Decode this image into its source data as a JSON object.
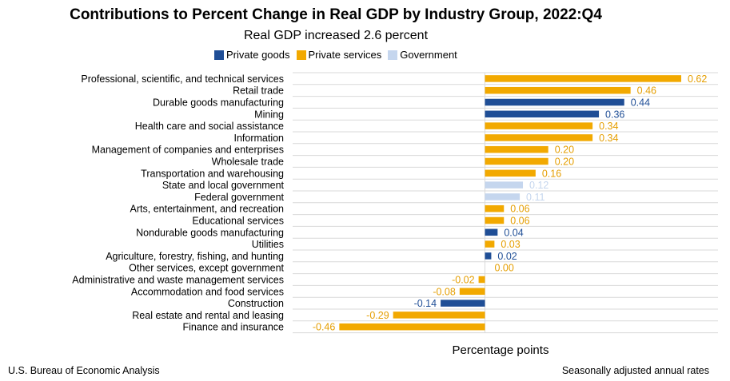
{
  "chart_data": {
    "type": "bar",
    "orientation": "horizontal",
    "title": "Contributions to Percent Change in Real GDP by Industry Group, 2022:Q4",
    "subtitle": "Real GDP increased 2.6 percent",
    "xlabel": "Percentage points",
    "xlim": [
      -0.46,
      0.62
    ],
    "grid": true,
    "legend_placement": "top",
    "groups": [
      {
        "key": "private_goods",
        "label": "Private goods",
        "color": "#1f4e96",
        "label_color": "#1f4e96"
      },
      {
        "key": "private_services",
        "label": "Private services",
        "color": "#f2a900",
        "label_color": "#e59e00"
      },
      {
        "key": "government",
        "label": "Government",
        "color": "#c5d6ee",
        "label_color": "#c5d6ee"
      }
    ],
    "categories": [
      {
        "name": "Professional, scientific, and technical services",
        "value": 0.62,
        "label": "0.62",
        "group": "private_services"
      },
      {
        "name": "Retail trade",
        "value": 0.46,
        "label": "0.46",
        "group": "private_services"
      },
      {
        "name": "Durable goods manufacturing",
        "value": 0.44,
        "label": "0.44",
        "group": "private_goods"
      },
      {
        "name": "Mining",
        "value": 0.36,
        "label": "0.36",
        "group": "private_goods"
      },
      {
        "name": "Health care and social assistance",
        "value": 0.34,
        "label": "0.34",
        "group": "private_services"
      },
      {
        "name": "Information",
        "value": 0.34,
        "label": "0.34",
        "group": "private_services"
      },
      {
        "name": "Management of companies and enterprises",
        "value": 0.2,
        "label": "0.20",
        "group": "private_services"
      },
      {
        "name": "Wholesale trade",
        "value": 0.2,
        "label": "0.20",
        "group": "private_services"
      },
      {
        "name": "Transportation and warehousing",
        "value": 0.16,
        "label": "0.16",
        "group": "private_services"
      },
      {
        "name": "State and local government",
        "value": 0.12,
        "label": "0.12",
        "group": "government"
      },
      {
        "name": "Federal government",
        "value": 0.11,
        "label": "0.11",
        "group": "government"
      },
      {
        "name": "Arts, entertainment, and recreation",
        "value": 0.06,
        "label": "0.06",
        "group": "private_services"
      },
      {
        "name": "Educational services",
        "value": 0.06,
        "label": "0.06",
        "group": "private_services"
      },
      {
        "name": "Nondurable goods manufacturing",
        "value": 0.04,
        "label": "0.04",
        "group": "private_goods"
      },
      {
        "name": "Utilities",
        "value": 0.03,
        "label": "0.03",
        "group": "private_services"
      },
      {
        "name": "Agriculture, forestry, fishing, and hunting",
        "value": 0.02,
        "label": "0.02",
        "group": "private_goods"
      },
      {
        "name": "Other services, except government",
        "value": 0.0,
        "label": "0.00",
        "group": "private_services"
      },
      {
        "name": "Administrative and waste management services",
        "value": -0.02,
        "label": "-0.02",
        "group": "private_services"
      },
      {
        "name": "Accommodation and food services",
        "value": -0.08,
        "label": "-0.08",
        "group": "private_services"
      },
      {
        "name": "Construction",
        "value": -0.14,
        "label": "-0.14",
        "group": "private_goods"
      },
      {
        "name": "Real estate and rental and leasing",
        "value": -0.29,
        "label": "-0.29",
        "group": "private_services"
      },
      {
        "name": "Finance and insurance",
        "value": -0.46,
        "label": "-0.46",
        "group": "private_services"
      }
    ]
  },
  "footer": {
    "source": "U.S. Bureau of Economic Analysis",
    "note": "Seasonally adjusted annual rates"
  }
}
